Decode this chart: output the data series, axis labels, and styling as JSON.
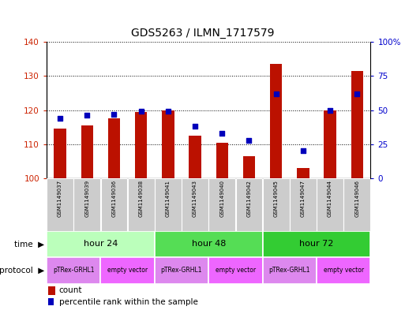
{
  "title": "GDS5263 / ILMN_1717579",
  "samples": [
    "GSM1149037",
    "GSM1149039",
    "GSM1149036",
    "GSM1149038",
    "GSM1149041",
    "GSM1149043",
    "GSM1149040",
    "GSM1149042",
    "GSM1149045",
    "GSM1149047",
    "GSM1149044",
    "GSM1149046"
  ],
  "counts": [
    114.5,
    115.5,
    117.5,
    119.5,
    120.0,
    112.5,
    110.5,
    106.5,
    133.5,
    103.0,
    120.0,
    131.5
  ],
  "percentile_ranks": [
    44,
    46,
    47,
    49,
    49,
    38,
    33,
    28,
    62,
    20,
    50,
    62
  ],
  "ylim_left": [
    100,
    140
  ],
  "ylim_right": [
    0,
    100
  ],
  "yticks_left": [
    100,
    110,
    120,
    130,
    140
  ],
  "yticks_right": [
    0,
    25,
    50,
    75,
    100
  ],
  "ytick_labels_right": [
    "0",
    "25",
    "50",
    "75",
    "100%"
  ],
  "bar_color": "#bb1100",
  "dot_color": "#0000bb",
  "bar_bottom": 100,
  "time_groups": [
    {
      "label": "hour 24",
      "start": 0,
      "end": 4,
      "color": "#bbffbb"
    },
    {
      "label": "hour 48",
      "start": 4,
      "end": 8,
      "color": "#55dd55"
    },
    {
      "label": "hour 72",
      "start": 8,
      "end": 12,
      "color": "#33cc33"
    }
  ],
  "protocol_groups": [
    {
      "label": "pTRex-GRHL1",
      "start": 0,
      "end": 2,
      "color": "#dd88ee"
    },
    {
      "label": "empty vector",
      "start": 2,
      "end": 4,
      "color": "#ee66ff"
    },
    {
      "label": "pTRex-GRHL1",
      "start": 4,
      "end": 6,
      "color": "#dd88ee"
    },
    {
      "label": "empty vector",
      "start": 6,
      "end": 8,
      "color": "#ee66ff"
    },
    {
      "label": "pTRex-GRHL1",
      "start": 8,
      "end": 10,
      "color": "#dd88ee"
    },
    {
      "label": "empty vector",
      "start": 10,
      "end": 12,
      "color": "#ee66ff"
    }
  ],
  "sample_bg_color": "#cccccc",
  "background_color": "#ffffff",
  "left_axis_color": "#cc2200",
  "right_axis_color": "#0000cc"
}
